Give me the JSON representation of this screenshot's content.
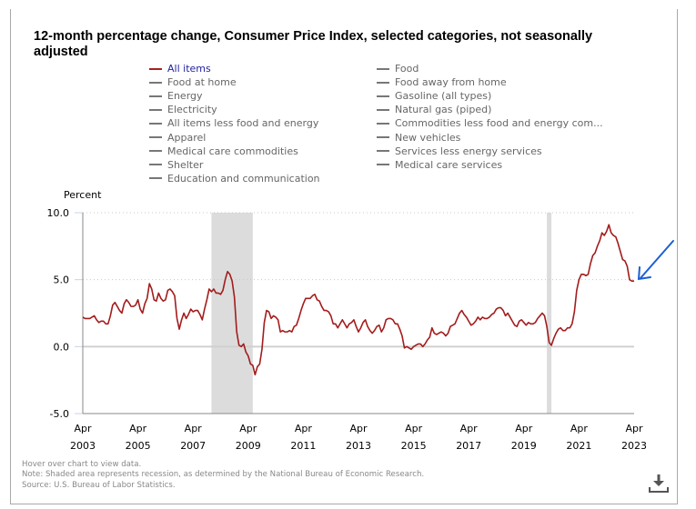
{
  "title": "12-month percentage change, Consumer Price Index, selected categories, not seasonally adjusted",
  "legend": {
    "col1": [
      "All items",
      "Food at home",
      "Energy",
      "Electricity",
      "All items less food and energy",
      "Apparel",
      "Medical care commodities",
      "Shelter",
      "Education and communication"
    ],
    "col2": [
      "Food",
      "Food away from home",
      "Gasoline (all types)",
      "Natural gas (piped)",
      "Commodities less food and energy com...",
      "New vehicles",
      "Services less energy services",
      "Medical care services"
    ],
    "active": "All items"
  },
  "colors": {
    "series": "#a31c1c",
    "legend_inactive": "#777777",
    "legend_active_text": "#1f1f9e",
    "recession": "#dcdcdc",
    "annotation_arrow": "#1a5fd6"
  },
  "notes": {
    "hover": "Hover over chart to view data.",
    "note": "Note: Shaded area represents recession, as determined by the National Bureau of Economic Research.",
    "source": "Source: U.S. Bureau of Labor Statistics."
  },
  "download_icon": "download-icon",
  "chart_data": {
    "type": "line",
    "title": "12-month percentage change, Consumer Price Index, selected categories, not seasonally adjusted",
    "ylabel": "Percent",
    "xlabel": "",
    "ylim": [
      -5.0,
      10.0
    ],
    "yticks": [
      "10.0",
      "5.0",
      "0.0",
      "-5.0"
    ],
    "ytick_values": [
      10,
      5,
      0,
      -5
    ],
    "xticks": [
      {
        "month": "Apr",
        "year": "2003"
      },
      {
        "month": "Apr",
        "year": "2005"
      },
      {
        "month": "Apr",
        "year": "2007"
      },
      {
        "month": "Apr",
        "year": "2009"
      },
      {
        "month": "Apr",
        "year": "2011"
      },
      {
        "month": "Apr",
        "year": "2013"
      },
      {
        "month": "Apr",
        "year": "2015"
      },
      {
        "month": "Apr",
        "year": "2017"
      },
      {
        "month": "Apr",
        "year": "2019"
      },
      {
        "month": "Apr",
        "year": "2021"
      },
      {
        "month": "Apr",
        "year": "2023"
      }
    ],
    "x_start": "Apr 2003",
    "x_end": "Apr 2023",
    "grid": "horizontal-dotted",
    "recessions": [
      {
        "start": "Dec 2007",
        "end": "Jun 2009"
      },
      {
        "start": "Feb 2020",
        "end": "Apr 2020"
      }
    ],
    "series": [
      {
        "name": "All items",
        "frequency": "monthly",
        "start": "Apr 2003",
        "values": [
          2.2,
          2.1,
          2.1,
          2.1,
          2.2,
          2.3,
          2.0,
          1.8,
          1.9,
          1.9,
          1.7,
          1.7,
          2.3,
          3.1,
          3.3,
          3.0,
          2.7,
          2.5,
          3.2,
          3.5,
          3.3,
          3.0,
          3.0,
          3.1,
          3.5,
          2.8,
          2.5,
          3.2,
          3.6,
          4.7,
          4.3,
          3.5,
          3.4,
          4.0,
          3.6,
          3.4,
          3.5,
          4.2,
          4.3,
          4.1,
          3.8,
          2.1,
          1.3,
          2.0,
          2.5,
          2.1,
          2.4,
          2.8,
          2.6,
          2.7,
          2.7,
          2.4,
          2.0,
          2.8,
          3.5,
          4.3,
          4.1,
          4.3,
          4.0,
          4.0,
          3.9,
          4.2,
          5.0,
          5.6,
          5.4,
          4.9,
          3.7,
          1.1,
          0.1,
          0.0,
          0.2,
          -0.4,
          -0.7,
          -1.3,
          -1.4,
          -2.1,
          -1.5,
          -1.3,
          -0.2,
          1.8,
          2.7,
          2.6,
          2.1,
          2.3,
          2.2,
          2.0,
          1.1,
          1.2,
          1.1,
          1.1,
          1.2,
          1.1,
          1.5,
          1.6,
          2.1,
          2.7,
          3.2,
          3.6,
          3.6,
          3.6,
          3.8,
          3.9,
          3.5,
          3.4,
          3.0,
          2.7,
          2.7,
          2.6,
          2.3,
          1.7,
          1.7,
          1.4,
          1.7,
          2.0,
          1.7,
          1.4,
          1.7,
          1.8,
          2.0,
          1.5,
          1.1,
          1.4,
          1.8,
          2.0,
          1.5,
          1.2,
          1.0,
          1.2,
          1.5,
          1.6,
          1.1,
          1.4,
          2.0,
          2.1,
          2.1,
          2.0,
          1.7,
          1.7,
          1.3,
          0.8,
          -0.1,
          0.0,
          -0.1,
          -0.2,
          0.0,
          0.1,
          0.2,
          0.2,
          0.0,
          0.2,
          0.5,
          0.7,
          1.4,
          1.0,
          0.9,
          1.0,
          1.1,
          1.0,
          0.8,
          1.0,
          1.5,
          1.6,
          1.7,
          2.1,
          2.5,
          2.7,
          2.4,
          2.2,
          1.9,
          1.6,
          1.7,
          1.9,
          2.2,
          2.0,
          2.2,
          2.1,
          2.1,
          2.2,
          2.4,
          2.5,
          2.8,
          2.9,
          2.9,
          2.7,
          2.3,
          2.5,
          2.2,
          1.9,
          1.6,
          1.5,
          1.9,
          2.0,
          1.8,
          1.6,
          1.8,
          1.7,
          1.7,
          1.8,
          2.1,
          2.3,
          2.5,
          2.3,
          1.5,
          0.3,
          0.1,
          0.6,
          1.0,
          1.3,
          1.4,
          1.2,
          1.2,
          1.4,
          1.4,
          1.7,
          2.6,
          4.2,
          5.0,
          5.4,
          5.4,
          5.3,
          5.4,
          6.2,
          6.8,
          7.0,
          7.5,
          7.9,
          8.5,
          8.3,
          8.6,
          9.1,
          8.5,
          8.3,
          8.2,
          7.7,
          7.1,
          6.5,
          6.4,
          6.0,
          5.0,
          4.9,
          4.9
        ]
      }
    ]
  },
  "annotation": {
    "type": "arrow",
    "points_to": "Apr 2023 value"
  }
}
